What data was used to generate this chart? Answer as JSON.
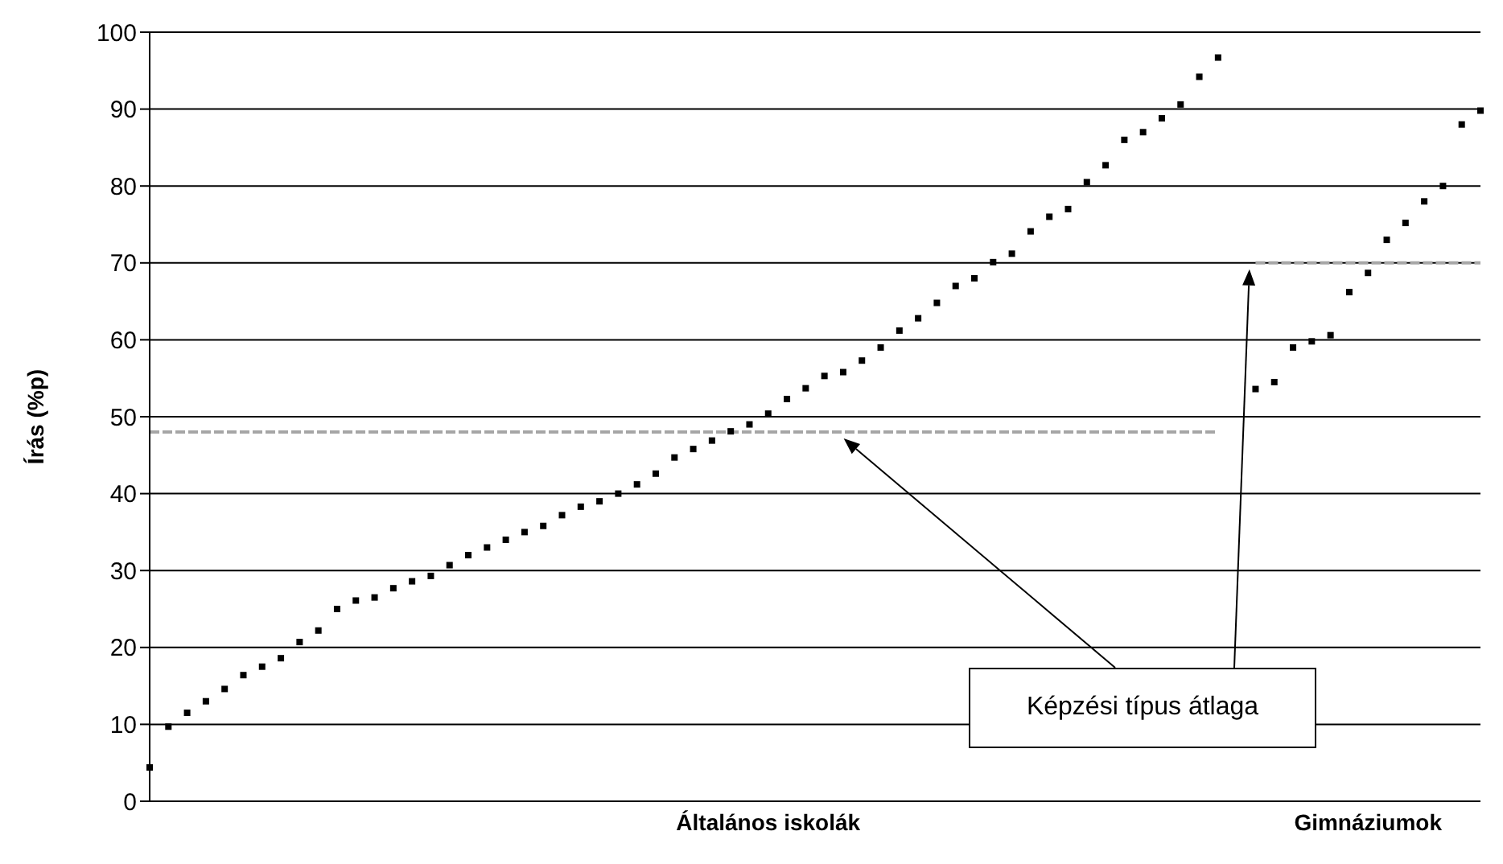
{
  "chart_data": {
    "type": "scatter",
    "ylabel": "Írás (%p)",
    "categories": [
      null,
      null,
      null,
      null,
      null,
      null,
      null,
      null,
      null,
      null,
      null,
      null,
      null,
      null,
      null,
      null,
      null,
      null,
      null,
      null,
      null,
      null,
      null,
      null,
      null,
      null,
      null,
      null,
      null,
      null,
      null,
      null,
      null,
      "Általános iskolák",
      null,
      null,
      null,
      null,
      null,
      null,
      null,
      null,
      null,
      null,
      null,
      null,
      null,
      null,
      null,
      null,
      null,
      null,
      null,
      null,
      null,
      null,
      null,
      null,
      null,
      null,
      null,
      null,
      null,
      null,
      null,
      "Gimnáziumok",
      null,
      null,
      null,
      null,
      null,
      null
    ],
    "ylim": [
      0,
      100
    ],
    "yticks": [
      0,
      10,
      20,
      30,
      40,
      50,
      60,
      70,
      80,
      90,
      100
    ],
    "grid": "y",
    "marker": "square",
    "annotations": [
      "Képzési típus átlaga"
    ],
    "series": [
      {
        "color": "#000000",
        "values": [
          4.4,
          9.7,
          11.5,
          13,
          14.6,
          16.4,
          17.5,
          18.6,
          20.7,
          22.2,
          25,
          26.1,
          26.5,
          27.7,
          28.6,
          29.3,
          30.7,
          32,
          33,
          34,
          35,
          35.8,
          37.2,
          38.3,
          39,
          40,
          41.2,
          42.6,
          44.7,
          45.8,
          46.9,
          48.1,
          49,
          50.4,
          52.3,
          53.7,
          55.3,
          55.8,
          57.3,
          59,
          61.2,
          62.8,
          64.8,
          67,
          68,
          70.1,
          71.2,
          74.1,
          76,
          77,
          80.5,
          82.7,
          86,
          87,
          88.8,
          90.6,
          94.2,
          96.7,
          null,
          null,
          null,
          null,
          null,
          null,
          null,
          null,
          null,
          null,
          null,
          null,
          null,
          null
        ]
      },
      {
        "color": "#000000",
        "values": [
          null,
          null,
          null,
          null,
          null,
          null,
          null,
          null,
          null,
          null,
          null,
          null,
          null,
          null,
          null,
          null,
          null,
          null,
          null,
          null,
          null,
          null,
          null,
          null,
          null,
          null,
          null,
          null,
          null,
          null,
          null,
          null,
          null,
          null,
          null,
          null,
          null,
          null,
          null,
          null,
          null,
          null,
          null,
          null,
          null,
          null,
          null,
          null,
          null,
          null,
          null,
          null,
          null,
          null,
          null,
          null,
          null,
          null,
          null,
          53.6,
          54.5,
          59,
          59.8,
          60.6,
          66.2,
          68.7,
          73,
          75.2,
          78,
          80,
          88,
          89.8
        ]
      },
      {
        "type": "line",
        "color": "#a6a6a6",
        "line_style": "dashed",
        "marker": "none",
        "values": [
          48,
          48,
          48,
          48,
          48,
          48,
          48,
          48,
          48,
          48,
          48,
          48,
          48,
          48,
          48,
          48,
          48,
          48,
          48,
          48,
          48,
          48,
          48,
          48,
          48,
          48,
          48,
          48,
          48,
          48,
          48,
          48,
          48,
          48,
          48,
          48,
          48,
          48,
          48,
          48,
          48,
          48,
          48,
          48,
          48,
          48,
          48,
          48,
          48,
          48,
          48,
          48,
          48,
          48,
          48,
          48,
          48,
          48,
          null,
          null,
          null,
          null,
          null,
          null,
          null,
          null,
          null,
          null,
          null,
          null,
          null,
          null
        ]
      },
      {
        "type": "line",
        "color": "#a6a6a6",
        "line_style": "dashed",
        "marker": "none",
        "values": [
          null,
          null,
          null,
          null,
          null,
          null,
          null,
          null,
          null,
          null,
          null,
          null,
          null,
          null,
          null,
          null,
          null,
          null,
          null,
          null,
          null,
          null,
          null,
          null,
          null,
          null,
          null,
          null,
          null,
          null,
          null,
          null,
          null,
          null,
          null,
          null,
          null,
          null,
          null,
          null,
          null,
          null,
          null,
          null,
          null,
          null,
          null,
          null,
          null,
          null,
          null,
          null,
          null,
          null,
          null,
          null,
          null,
          null,
          null,
          70,
          70,
          70,
          70,
          70,
          70,
          70,
          70,
          70,
          70,
          70,
          70,
          70
        ]
      }
    ]
  }
}
